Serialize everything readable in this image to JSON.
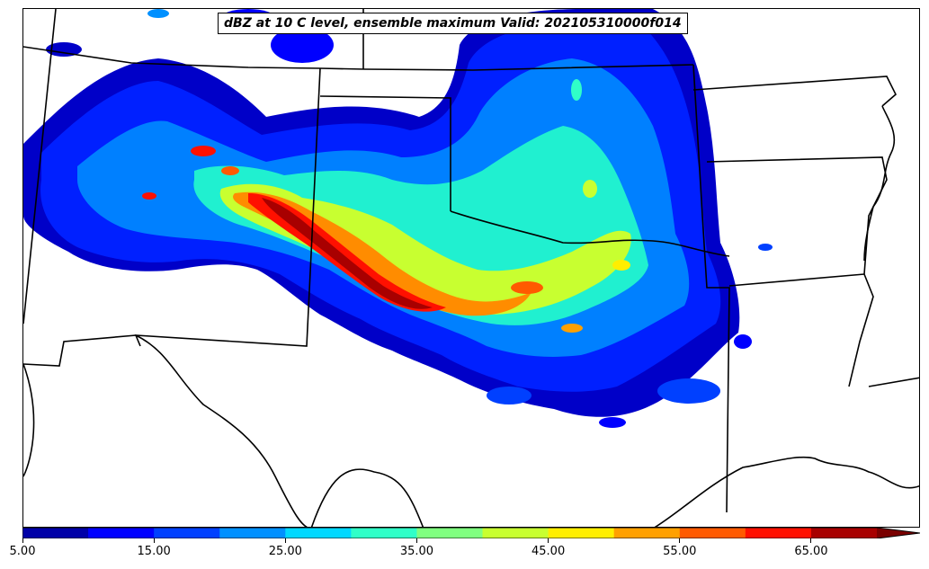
{
  "title": "dBZ at 10 C level, ensemble maximum Valid: 202105310000f014",
  "colorbar": {
    "levels": [
      5,
      10,
      15,
      20,
      25,
      30,
      35,
      40,
      45,
      50,
      55,
      60,
      65,
      70
    ],
    "colors": [
      "#0000a8",
      "#0000ff",
      "#0040ff",
      "#0090ff",
      "#00d8ff",
      "#30ffc8",
      "#80ff80",
      "#c8ff30",
      "#ffee00",
      "#ffa000",
      "#ff5a00",
      "#ff1000",
      "#a80000"
    ],
    "extend_color": "#7a0000",
    "tick_labels": [
      "5.00",
      "15.00",
      "25.00",
      "35.00",
      "45.00",
      "55.00",
      "65.00"
    ],
    "tick_values": [
      5,
      15,
      25,
      35,
      45,
      55,
      65
    ]
  }
}
